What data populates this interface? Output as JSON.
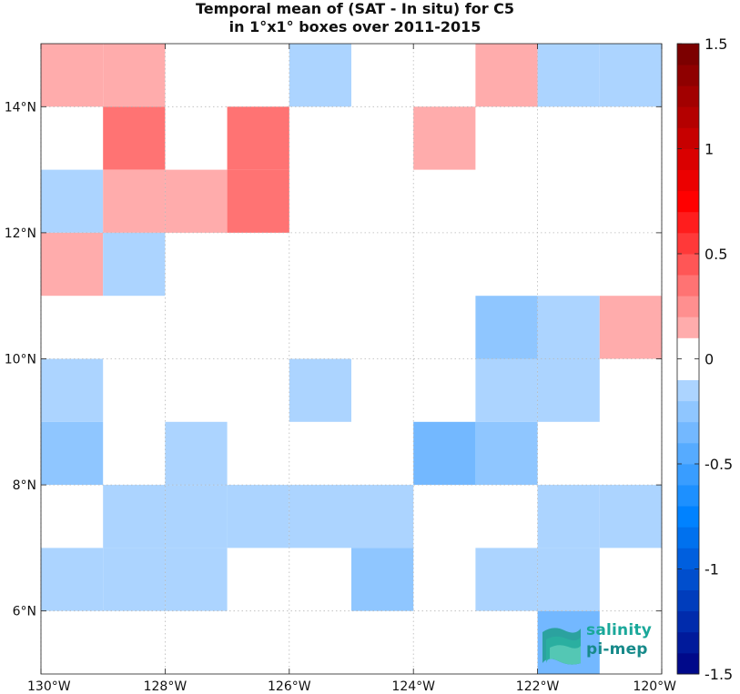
{
  "chart_data": {
    "type": "heatmap",
    "title": "Temporal mean of (SAT - In situ) for C5",
    "subtitle": "in 1°x1° boxes over 2011-2015",
    "xlim": [
      -130,
      -120
    ],
    "ylim": [
      5,
      15
    ],
    "x_ticks": [
      -130,
      -128,
      -126,
      -124,
      -122,
      -120
    ],
    "x_tick_labels": [
      "130°W",
      "128°W",
      "126°W",
      "124°W",
      "122°W",
      "120°W"
    ],
    "y_ticks": [
      6,
      8,
      10,
      12,
      14
    ],
    "y_tick_labels": [
      "6°N",
      "8°N",
      "10°N",
      "12°N",
      "14°N"
    ],
    "grid": true,
    "colorbar": {
      "range": [
        -1.5,
        1.5
      ],
      "ticks": [
        1.5,
        1,
        0.5,
        0,
        -0.5,
        -1,
        -1.5
      ],
      "tick_labels": [
        "1.5",
        "1",
        "0.5",
        "0",
        "-0.5",
        "-1",
        "-1.5"
      ],
      "colormap": "blue-white-red"
    },
    "cells": [
      {
        "lon": -130,
        "lat": 14,
        "value": 0.15
      },
      {
        "lon": -129,
        "lat": 14,
        "value": 0.15
      },
      {
        "lon": -126,
        "lat": 14,
        "value": -0.1
      },
      {
        "lon": -123,
        "lat": 14,
        "value": 0.15
      },
      {
        "lon": -122,
        "lat": 14,
        "value": -0.1
      },
      {
        "lon": -121,
        "lat": 14,
        "value": -0.1
      },
      {
        "lon": -129,
        "lat": 13,
        "value": 0.3
      },
      {
        "lon": -127,
        "lat": 13,
        "value": 0.3
      },
      {
        "lon": -124,
        "lat": 13,
        "value": 0.15
      },
      {
        "lon": -130,
        "lat": 12,
        "value": -0.1
      },
      {
        "lon": -129,
        "lat": 12,
        "value": 0.15
      },
      {
        "lon": -128,
        "lat": 12,
        "value": 0.15
      },
      {
        "lon": -127,
        "lat": 12,
        "value": 0.3
      },
      {
        "lon": -130,
        "lat": 11,
        "value": 0.15
      },
      {
        "lon": -129,
        "lat": 11,
        "value": -0.1
      },
      {
        "lon": -123,
        "lat": 10,
        "value": -0.25
      },
      {
        "lon": -122,
        "lat": 10,
        "value": -0.1
      },
      {
        "lon": -121,
        "lat": 10,
        "value": 0.15
      },
      {
        "lon": -130,
        "lat": 9,
        "value": -0.1
      },
      {
        "lon": -126,
        "lat": 9,
        "value": -0.1
      },
      {
        "lon": -123,
        "lat": 9,
        "value": -0.1
      },
      {
        "lon": -122,
        "lat": 9,
        "value": -0.1
      },
      {
        "lon": -130,
        "lat": 8,
        "value": -0.25
      },
      {
        "lon": -128,
        "lat": 8,
        "value": -0.1
      },
      {
        "lon": -124,
        "lat": 8,
        "value": -0.4
      },
      {
        "lon": -123,
        "lat": 8,
        "value": -0.25
      },
      {
        "lon": -129,
        "lat": 7,
        "value": -0.1
      },
      {
        "lon": -128,
        "lat": 7,
        "value": -0.1
      },
      {
        "lon": -127,
        "lat": 7,
        "value": -0.1
      },
      {
        "lon": -126,
        "lat": 7,
        "value": -0.1
      },
      {
        "lon": -125,
        "lat": 7,
        "value": -0.1
      },
      {
        "lon": -122,
        "lat": 7,
        "value": -0.1
      },
      {
        "lon": -121,
        "lat": 7,
        "value": -0.1
      },
      {
        "lon": -130,
        "lat": 6,
        "value": -0.1
      },
      {
        "lon": -129,
        "lat": 6,
        "value": -0.1
      },
      {
        "lon": -128,
        "lat": 6,
        "value": -0.1
      },
      {
        "lon": -125,
        "lat": 6,
        "value": -0.25
      },
      {
        "lon": -123,
        "lat": 6,
        "value": -0.1
      },
      {
        "lon": -122,
        "lat": 6,
        "value": -0.1
      },
      {
        "lon": -122,
        "lat": 5,
        "value": -0.3
      }
    ]
  },
  "logo": {
    "line1": "salinity",
    "line2": "pi-mep"
  }
}
